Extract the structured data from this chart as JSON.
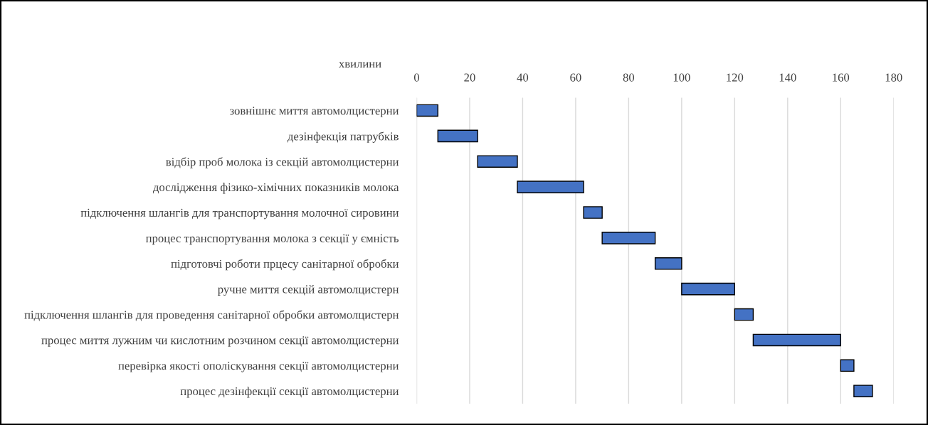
{
  "chart_data": {
    "type": "bar",
    "orientation": "horizontal",
    "xlabel": "хвилини",
    "categories": [
      "зовнішнє миття автомолцистерни",
      "дезінфекція патрубків",
      "відбір проб молока із секцій автомолцистерни",
      "дослідження фізико-хімічних показників молока",
      "підключення шлангів для транспортування молочної сировини",
      "процес транспортування молока з секції у ємність",
      "підготовчі роботи прцесу санітарної обробки",
      "ручне миття секцій автомолцистерн",
      "підключення шлангів для проведення санітарної обробки автомолцистерн",
      "процес миття лужним чи кислотним розчином секції автомолцистерни",
      "перевірка якості ополіскування секції автомолцистерни",
      "процес дезінфекції секції автомолцистерни"
    ],
    "base": [
      0,
      8,
      23,
      38,
      63,
      70,
      90,
      100,
      120,
      127,
      160,
      165
    ],
    "values": [
      8,
      15,
      15,
      25,
      7,
      20,
      10,
      20,
      7,
      33,
      5,
      7
    ],
    "color": "#4472c4",
    "xlim": [
      0,
      180
    ],
    "xticks": [
      0,
      20,
      40,
      60,
      80,
      100,
      120,
      140,
      160,
      180
    ],
    "grid": "x"
  }
}
